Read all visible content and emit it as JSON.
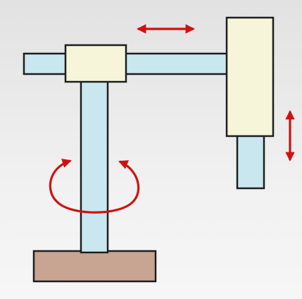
{
  "diagram": {
    "parts": [
      "base",
      "vertical-column",
      "shoulder-joint",
      "horizontal-arm",
      "end-effector-housing",
      "end-effector-shaft"
    ],
    "motions": [
      {
        "name": "horizontal-translation-arrow",
        "kind": "double-headed-horizontal"
      },
      {
        "name": "vertical-translation-arrow",
        "kind": "double-headed-vertical"
      },
      {
        "name": "base-rotation-arrow",
        "kind": "rotation"
      }
    ],
    "colors": {
      "background": "#ececec",
      "rod_fill": "#c9e7ef",
      "joint_fill": "#f6f5d9",
      "base_fill": "#c8a592",
      "outline": "#1e1e1e",
      "arrow": "#d01111"
    }
  }
}
